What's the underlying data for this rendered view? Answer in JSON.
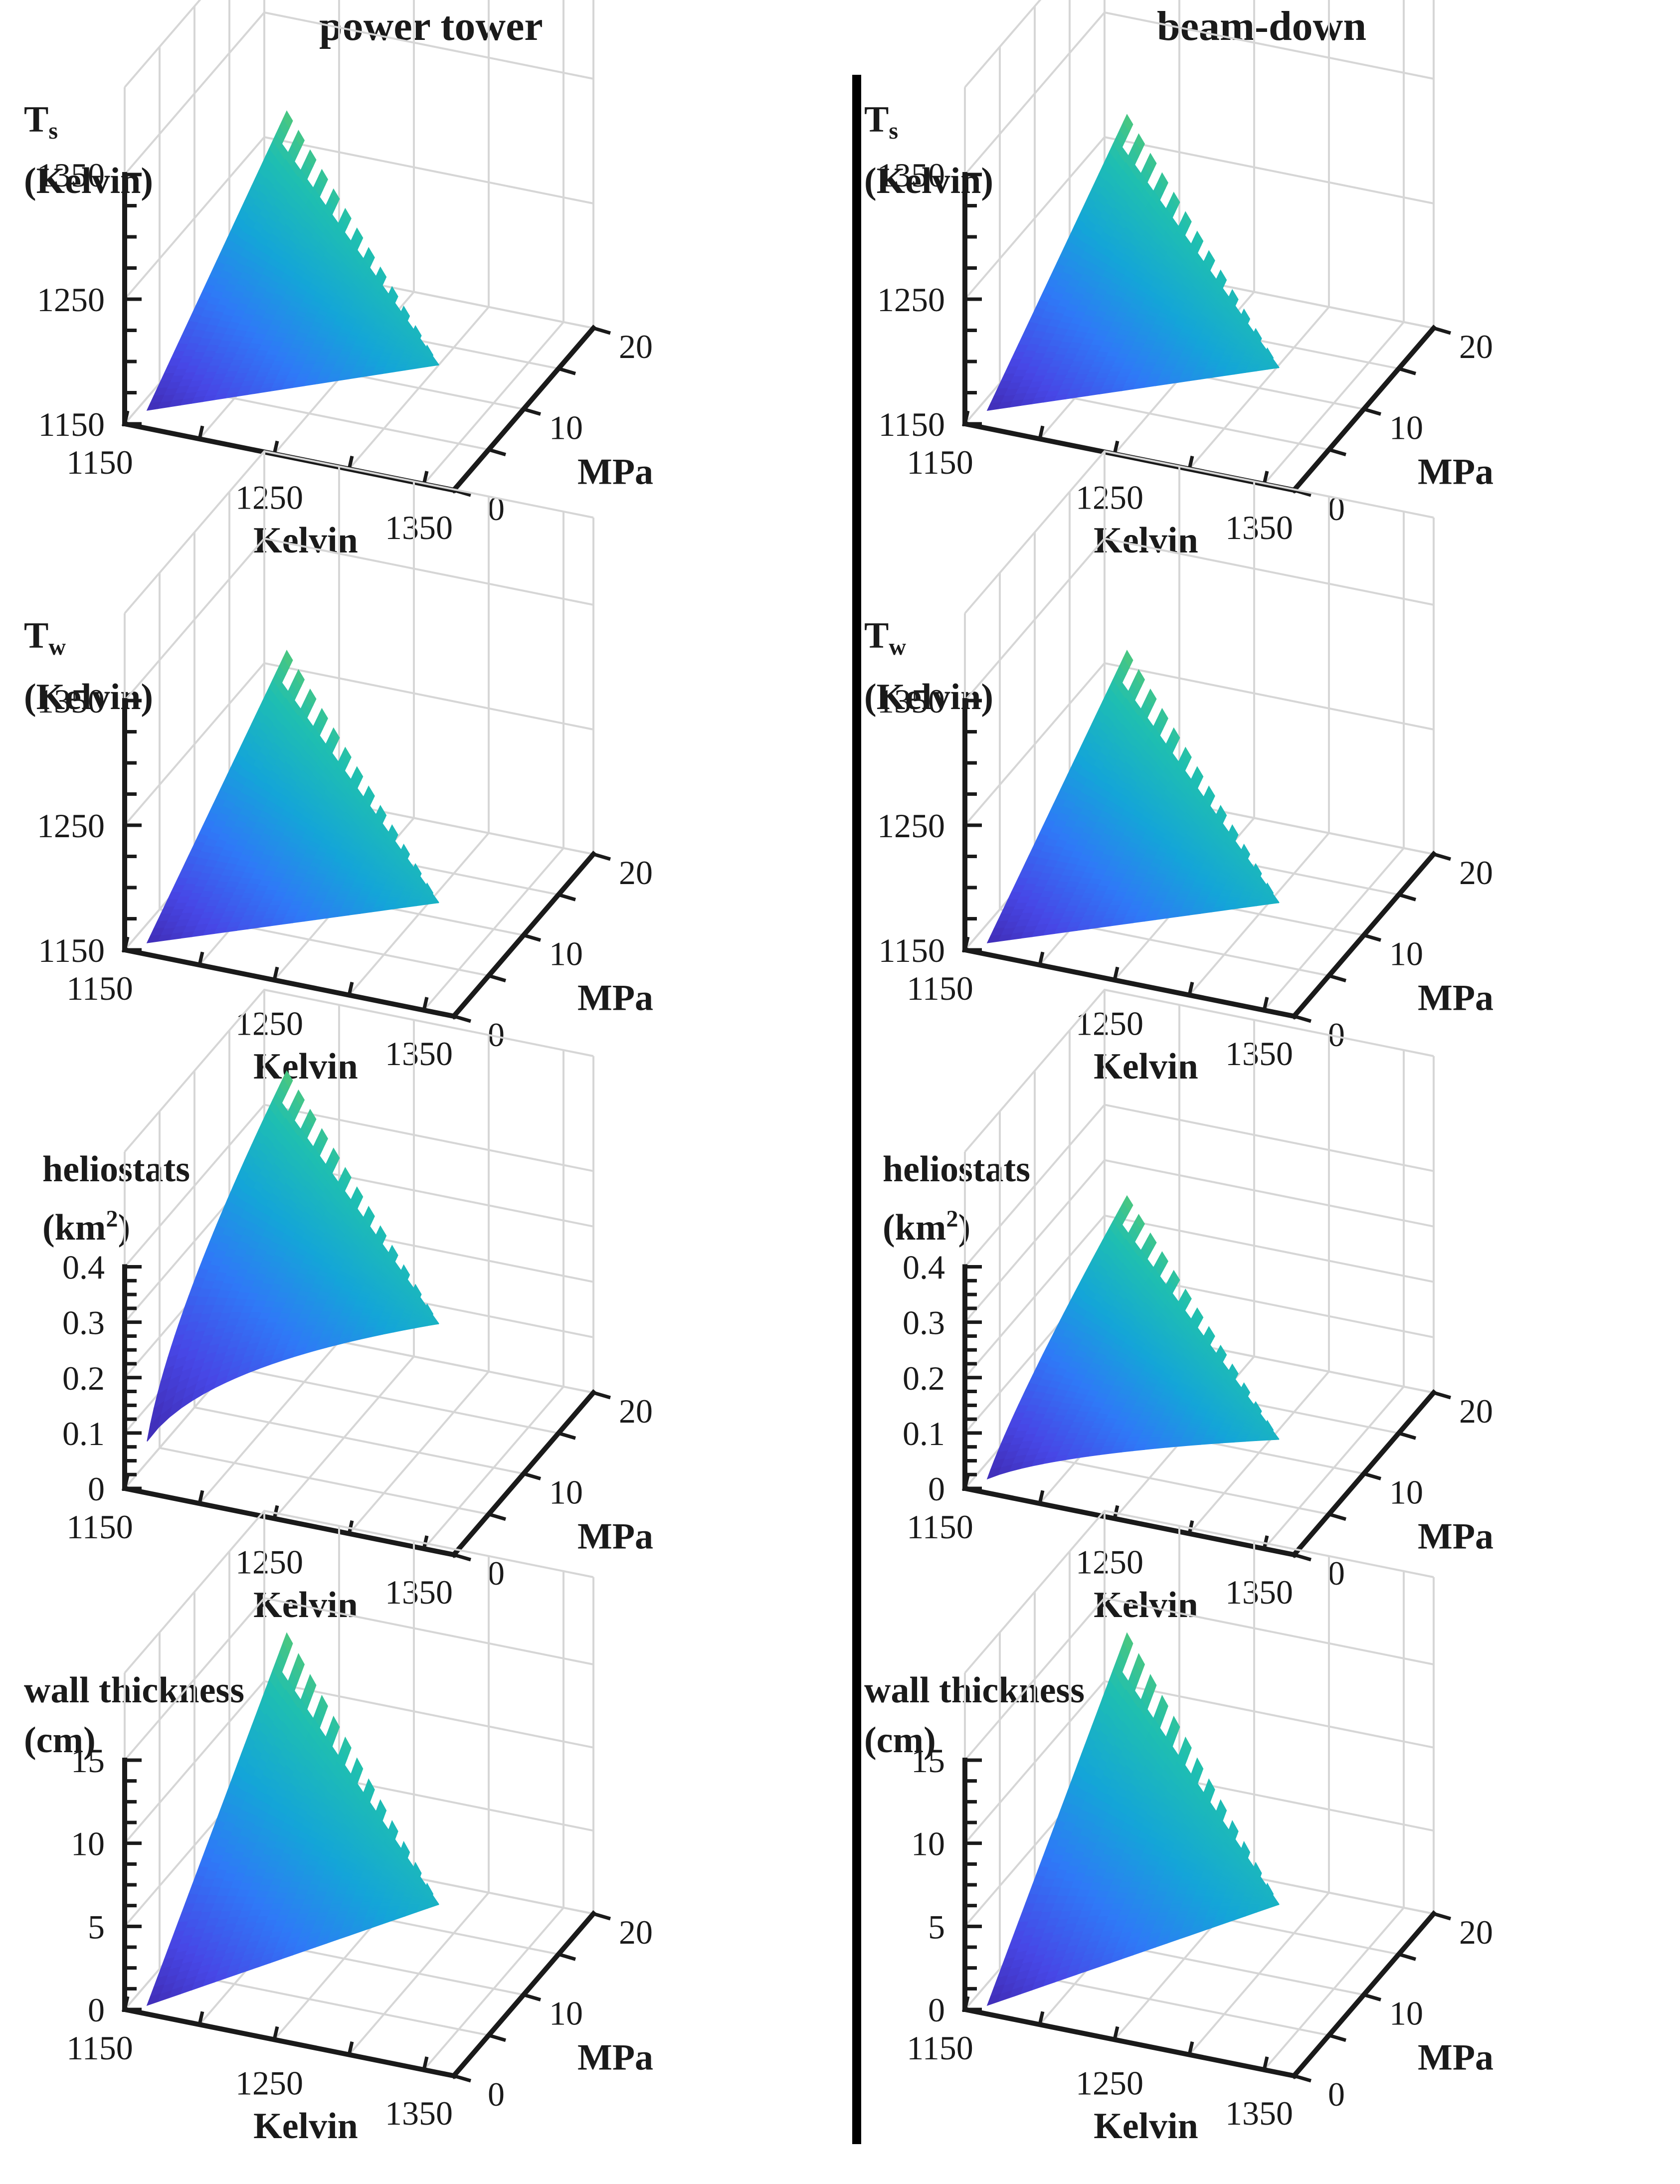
{
  "columns": [
    "power tower",
    "beam-down"
  ],
  "colormap": [
    "#3e26a8",
    "#4747e6",
    "#2f79f7",
    "#14a5d8",
    "#1fbfb0",
    "#6bcc5a",
    "#cfbb3c",
    "#fdb92f",
    "#f9fa14"
  ],
  "colors": {
    "axis": "#1a1a1a",
    "grid": "#d6d6d6",
    "divider": "#000000"
  },
  "chart_data": [
    {
      "id": "ts-power-tower",
      "column": "power tower",
      "type": "surface3d",
      "zlabel_lines": [
        "T",
        "s",
        "(Kelvin)"
      ],
      "xlabel": "Kelvin",
      "ylabel": "MPa",
      "xlim": [
        1150,
        1370
      ],
      "ylim": [
        0,
        20
      ],
      "zlim": [
        1150,
        1350
      ],
      "xticks": [
        "1150",
        "1250",
        "1350"
      ],
      "yticks": [
        "0",
        "10",
        "20"
      ],
      "zticks": [
        "1150",
        "1250",
        "1350"
      ],
      "zmin_surface": 1160,
      "zmax_surface": 1360,
      "zexp": 1.0,
      "description_values": {
        "surface_min": 1160,
        "surface_max": 1360
      }
    },
    {
      "id": "ts-beam-down",
      "column": "beam-down",
      "type": "surface3d",
      "zlabel_lines": [
        "T",
        "s",
        "(Kelvin)"
      ],
      "xlabel": "Kelvin",
      "ylabel": "MPa",
      "xlim": [
        1150,
        1370
      ],
      "ylim": [
        0,
        20
      ],
      "zlim": [
        1150,
        1350
      ],
      "xticks": [
        "1150",
        "1250",
        "1350"
      ],
      "yticks": [
        "0",
        "10",
        "20"
      ],
      "zticks": [
        "1150",
        "1250",
        "1350"
      ],
      "zmin_surface": 1160,
      "zmax_surface": 1355,
      "zexp": 1.0,
      "description_values": {
        "surface_min": 1160,
        "surface_max": 1355
      }
    },
    {
      "id": "tw-power-tower",
      "column": "power tower",
      "type": "surface3d",
      "zlabel_lines": [
        "T",
        "w",
        "(Kelvin)"
      ],
      "xlabel": "Kelvin",
      "ylabel": "MPa",
      "xlim": [
        1150,
        1370
      ],
      "ylim": [
        0,
        20
      ],
      "zlim": [
        1150,
        1350
      ],
      "xticks": [
        "1150",
        "1250",
        "1350"
      ],
      "yticks": [
        "0",
        "10",
        "20"
      ],
      "zticks": [
        "1150",
        "1250",
        "1350"
      ],
      "zmin_surface": 1155,
      "zmax_surface": 1345,
      "zexp": 1.0,
      "description_values": {
        "surface_min": 1155,
        "surface_max": 1345
      }
    },
    {
      "id": "tw-beam-down",
      "column": "beam-down",
      "type": "surface3d",
      "zlabel_lines": [
        "T",
        "w",
        "(Kelvin)"
      ],
      "xlabel": "Kelvin",
      "ylabel": "MPa",
      "xlim": [
        1150,
        1370
      ],
      "ylim": [
        0,
        20
      ],
      "zlim": [
        1150,
        1350
      ],
      "xticks": [
        "1150",
        "1250",
        "1350"
      ],
      "yticks": [
        "0",
        "10",
        "20"
      ],
      "zticks": [
        "1150",
        "1250",
        "1350"
      ],
      "zmin_surface": 1155,
      "zmax_surface": 1345,
      "zexp": 1.0,
      "description_values": {
        "surface_min": 1155,
        "surface_max": 1345
      }
    },
    {
      "id": "heliostats-power-tower",
      "column": "power tower",
      "type": "surface3d",
      "zlabel_lines": [
        "heliostats",
        "(km",
        "2",
        ")"
      ],
      "xlabel": "Kelvin",
      "ylabel": "MPa",
      "xlim": [
        1150,
        1370
      ],
      "ylim": [
        0,
        20
      ],
      "zlim": [
        0,
        0.45
      ],
      "xticks": [
        "1150",
        "1250",
        "1350"
      ],
      "yticks": [
        "0",
        "10",
        "20"
      ],
      "zticks": [
        "0",
        "0.1",
        "0.2",
        "0.3",
        "0.4"
      ],
      "zmin_surface": 0.0,
      "zmax_surface": 0.62,
      "zexp": 0.5,
      "description_values": {
        "surface_min": 0.0,
        "surface_max": 0.62
      }
    },
    {
      "id": "heliostats-beam-down",
      "column": "beam-down",
      "type": "surface3d",
      "zlabel_lines": [
        "heliostats",
        "(km",
        "2",
        ")"
      ],
      "xlabel": "Kelvin",
      "ylabel": "MPa",
      "xlim": [
        1150,
        1370
      ],
      "ylim": [
        0,
        20
      ],
      "zlim": [
        0,
        0.45
      ],
      "xticks": [
        "1150",
        "1250",
        "1350"
      ],
      "yticks": [
        "0",
        "10",
        "20"
      ],
      "zticks": [
        "0",
        "0.1",
        "0.2",
        "0.3",
        "0.4"
      ],
      "zmin_surface": 0.0,
      "zmax_surface": 0.36,
      "zexp": 0.7,
      "description_values": {
        "surface_min": 0.0,
        "surface_max": 0.36
      }
    },
    {
      "id": "wall-thickness-power-tower",
      "column": "power tower",
      "type": "surface3d",
      "zlabel_lines": [
        "wall thickness",
        "(cm)"
      ],
      "xlabel": "Kelvin",
      "ylabel": "MPa",
      "xlim": [
        1150,
        1370
      ],
      "ylim": [
        0,
        20
      ],
      "zlim": [
        0,
        15
      ],
      "xticks": [
        "1150",
        "1250",
        "1350"
      ],
      "yticks": [
        "0",
        "10",
        "20"
      ],
      "zticks": [
        "0",
        "5",
        "10",
        "15"
      ],
      "zmin_surface": 0.0,
      "zmax_surface": 23,
      "zexp": 1.0,
      "description_values": {
        "surface_min": 0.0,
        "surface_max": 23
      }
    },
    {
      "id": "wall-thickness-beam-down",
      "column": "beam-down",
      "type": "surface3d",
      "zlabel_lines": [
        "wall thickness",
        "(cm)"
      ],
      "xlabel": "Kelvin",
      "ylabel": "MPa",
      "xlim": [
        1150,
        1370
      ],
      "ylim": [
        0,
        20
      ],
      "zlim": [
        0,
        15
      ],
      "xticks": [
        "1150",
        "1250",
        "1350"
      ],
      "yticks": [
        "0",
        "10",
        "20"
      ],
      "zticks": [
        "0",
        "5",
        "10",
        "15"
      ],
      "zmin_surface": 0.0,
      "zmax_surface": 23,
      "zexp": 1.0,
      "description_values": {
        "surface_min": 0.0,
        "surface_max": 23
      }
    }
  ]
}
